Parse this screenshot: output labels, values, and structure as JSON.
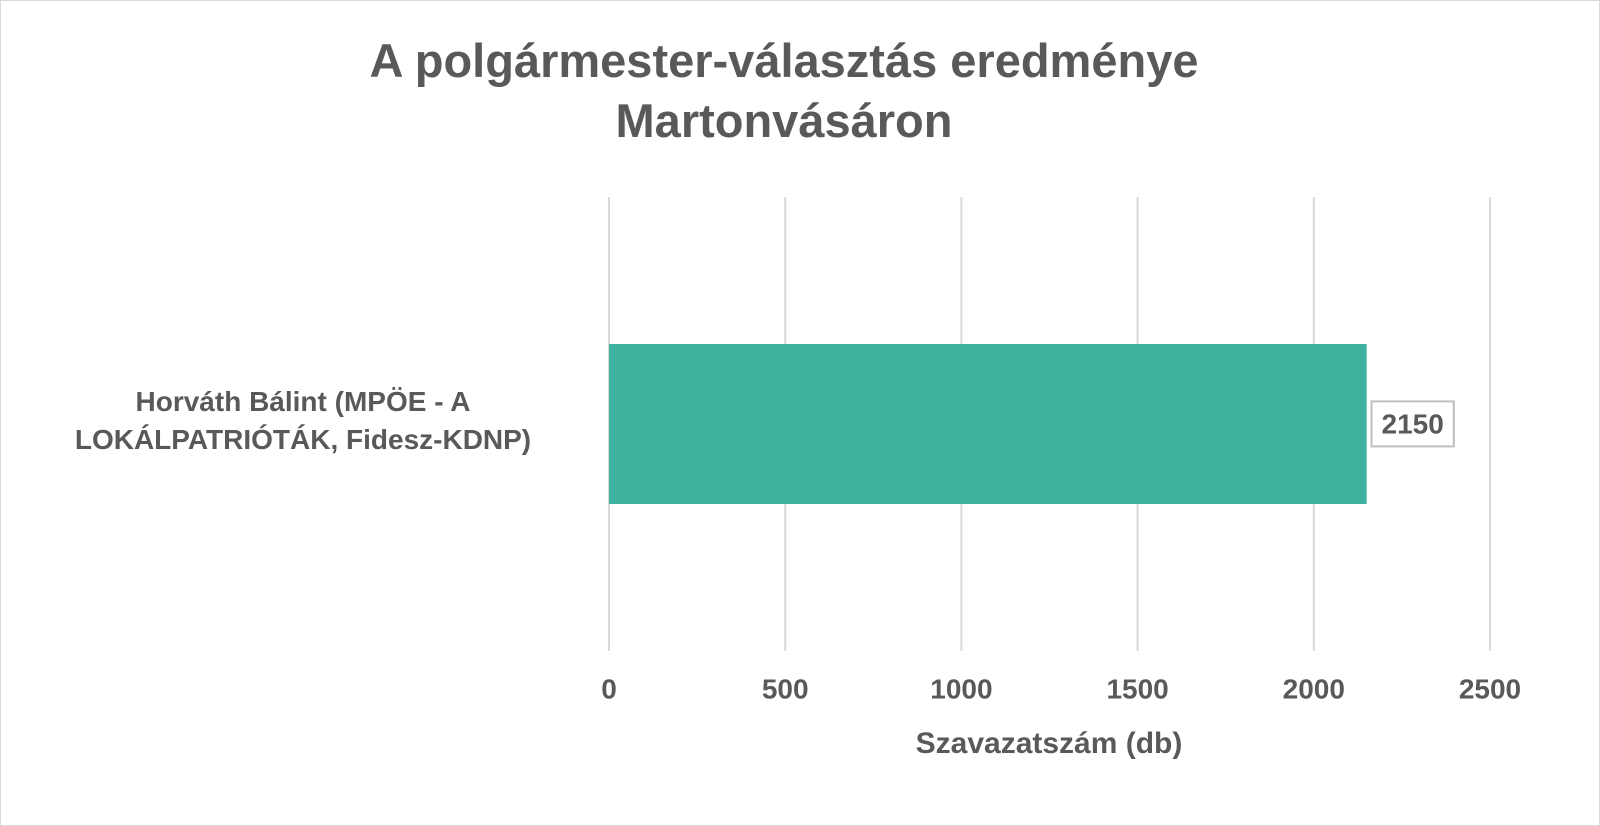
{
  "chart_data": {
    "type": "bar",
    "orientation": "horizontal",
    "title": "A polgármester-választás eredménye Martonvásáron",
    "categories": [
      "Horváth Bálint (MPÖE - A LOKÁLPATRIÓTÁK, Fidesz-KDNP)"
    ],
    "values": [
      2150
    ],
    "color": "#3eb19f",
    "xlabel": "Szavazatszám (db)",
    "xlim": [
      0,
      2500
    ],
    "xticks": [
      0,
      500,
      1000,
      1500,
      2000,
      2500
    ],
    "grid": true
  }
}
